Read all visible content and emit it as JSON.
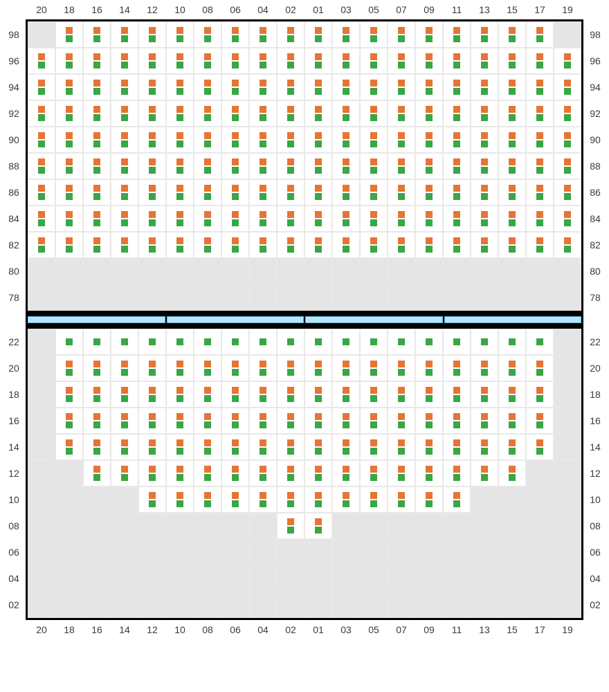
{
  "columns": [
    "20",
    "18",
    "16",
    "14",
    "12",
    "10",
    "08",
    "06",
    "04",
    "02",
    "01",
    "03",
    "05",
    "07",
    "09",
    "11",
    "13",
    "15",
    "17",
    "19"
  ],
  "colors": {
    "orange": "#e67535",
    "green": "#3aa646",
    "empty_bg": "#e5e5e5",
    "filled_bg": "#ffffff",
    "grid_line": "#e8e8e8",
    "border": "#000000",
    "divider_fill": "#bce4f7",
    "divider_border": "#5bb5e0",
    "label_color": "#3a3a3a"
  },
  "label_fontsize": 14,
  "top_section": {
    "rows": [
      {
        "label": "98",
        "cells": [
          0,
          2,
          2,
          2,
          2,
          2,
          2,
          2,
          2,
          2,
          2,
          2,
          2,
          2,
          2,
          2,
          2,
          2,
          2,
          0
        ]
      },
      {
        "label": "96",
        "cells": [
          2,
          2,
          2,
          2,
          2,
          2,
          2,
          2,
          2,
          2,
          2,
          2,
          2,
          2,
          2,
          2,
          2,
          2,
          2,
          2
        ]
      },
      {
        "label": "94",
        "cells": [
          2,
          2,
          2,
          2,
          2,
          2,
          2,
          2,
          2,
          2,
          2,
          2,
          2,
          2,
          2,
          2,
          2,
          2,
          2,
          2
        ]
      },
      {
        "label": "92",
        "cells": [
          2,
          2,
          2,
          2,
          2,
          2,
          2,
          2,
          2,
          2,
          2,
          2,
          2,
          2,
          2,
          2,
          2,
          2,
          2,
          2
        ]
      },
      {
        "label": "90",
        "cells": [
          2,
          2,
          2,
          2,
          2,
          2,
          2,
          2,
          2,
          2,
          2,
          2,
          2,
          2,
          2,
          2,
          2,
          2,
          2,
          2
        ]
      },
      {
        "label": "88",
        "cells": [
          2,
          2,
          2,
          2,
          2,
          2,
          2,
          2,
          2,
          2,
          2,
          2,
          2,
          2,
          2,
          2,
          2,
          2,
          2,
          2
        ]
      },
      {
        "label": "86",
        "cells": [
          2,
          2,
          2,
          2,
          2,
          2,
          2,
          2,
          2,
          2,
          2,
          2,
          2,
          2,
          2,
          2,
          2,
          2,
          2,
          2
        ]
      },
      {
        "label": "84",
        "cells": [
          2,
          2,
          2,
          2,
          2,
          2,
          2,
          2,
          2,
          2,
          2,
          2,
          2,
          2,
          2,
          2,
          2,
          2,
          2,
          2
        ]
      },
      {
        "label": "82",
        "cells": [
          2,
          2,
          2,
          2,
          2,
          2,
          2,
          2,
          2,
          2,
          2,
          2,
          2,
          2,
          2,
          2,
          2,
          2,
          2,
          2
        ]
      },
      {
        "label": "80",
        "cells": [
          0,
          0,
          0,
          0,
          0,
          0,
          0,
          0,
          0,
          0,
          0,
          0,
          0,
          0,
          0,
          0,
          0,
          0,
          0,
          0
        ]
      },
      {
        "label": "78",
        "cells": [
          0,
          0,
          0,
          0,
          0,
          0,
          0,
          0,
          0,
          0,
          0,
          0,
          0,
          0,
          0,
          0,
          0,
          0,
          0,
          0
        ]
      }
    ]
  },
  "divider_segments": 4,
  "bottom_section": {
    "rows": [
      {
        "label": "22",
        "cells": [
          0,
          1,
          1,
          1,
          1,
          1,
          1,
          1,
          1,
          1,
          1,
          1,
          1,
          1,
          1,
          1,
          1,
          1,
          1,
          0
        ]
      },
      {
        "label": "20",
        "cells": [
          0,
          2,
          2,
          2,
          2,
          2,
          2,
          2,
          2,
          2,
          2,
          2,
          2,
          2,
          2,
          2,
          2,
          2,
          2,
          0
        ]
      },
      {
        "label": "18",
        "cells": [
          0,
          2,
          2,
          2,
          2,
          2,
          2,
          2,
          2,
          2,
          2,
          2,
          2,
          2,
          2,
          2,
          2,
          2,
          2,
          0
        ]
      },
      {
        "label": "16",
        "cells": [
          0,
          2,
          2,
          2,
          2,
          2,
          2,
          2,
          2,
          2,
          2,
          2,
          2,
          2,
          2,
          2,
          2,
          2,
          2,
          0
        ]
      },
      {
        "label": "14",
        "cells": [
          0,
          2,
          2,
          2,
          2,
          2,
          2,
          2,
          2,
          2,
          2,
          2,
          2,
          2,
          2,
          2,
          2,
          2,
          2,
          0
        ]
      },
      {
        "label": "12",
        "cells": [
          0,
          0,
          2,
          2,
          2,
          2,
          2,
          2,
          2,
          2,
          2,
          2,
          2,
          2,
          2,
          2,
          2,
          2,
          0,
          0
        ]
      },
      {
        "label": "10",
        "cells": [
          0,
          0,
          0,
          0,
          2,
          2,
          2,
          2,
          2,
          2,
          2,
          2,
          2,
          2,
          2,
          2,
          0,
          0,
          0,
          0
        ]
      },
      {
        "label": "08",
        "cells": [
          0,
          0,
          0,
          0,
          0,
          0,
          0,
          0,
          0,
          2,
          2,
          0,
          0,
          0,
          0,
          0,
          0,
          0,
          0,
          0
        ]
      },
      {
        "label": "06",
        "cells": [
          0,
          0,
          0,
          0,
          0,
          0,
          0,
          0,
          0,
          0,
          0,
          0,
          0,
          0,
          0,
          0,
          0,
          0,
          0,
          0
        ]
      },
      {
        "label": "04",
        "cells": [
          0,
          0,
          0,
          0,
          0,
          0,
          0,
          0,
          0,
          0,
          0,
          0,
          0,
          0,
          0,
          0,
          0,
          0,
          0,
          0
        ]
      },
      {
        "label": "02",
        "cells": [
          0,
          0,
          0,
          0,
          0,
          0,
          0,
          0,
          0,
          0,
          0,
          0,
          0,
          0,
          0,
          0,
          0,
          0,
          0,
          0
        ]
      }
    ]
  },
  "cell_types": {
    "0": "empty",
    "1": "green-only",
    "2": "orange-green"
  }
}
